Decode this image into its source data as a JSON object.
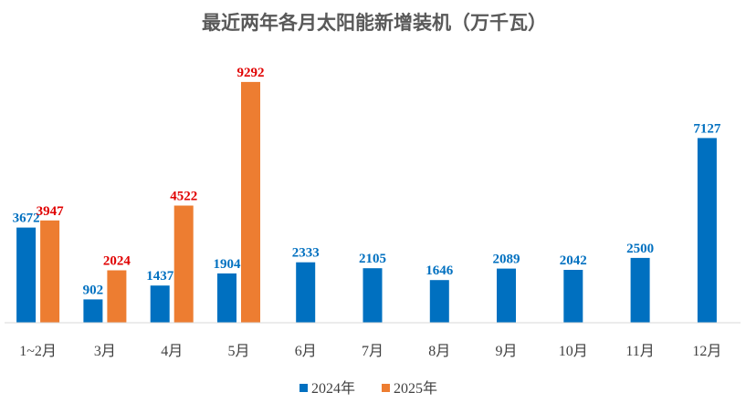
{
  "chart_data": {
    "type": "bar",
    "title": "最近两年各月太阳能新增装机（万千瓦）",
    "xlabel": "",
    "ylabel": "",
    "ylim": [
      0,
      9500
    ],
    "grid": false,
    "legend_position": "bottom",
    "categories": [
      "1~2月",
      "3月",
      "4月",
      "5月",
      "6月",
      "7月",
      "8月",
      "9月",
      "10月",
      "11月",
      "12月"
    ],
    "series": [
      {
        "name": "2024年",
        "color": "#0070C0",
        "label_color": "#0070C0",
        "values": [
          3672,
          902,
          1437,
          1904,
          2333,
          2105,
          1646,
          2089,
          2042,
          2500,
          7127
        ]
      },
      {
        "name": "2025年",
        "color": "#ED7D31",
        "label_color": "#E00000",
        "values": [
          3947,
          2024,
          4522,
          9292,
          null,
          null,
          null,
          null,
          null,
          null,
          null
        ]
      }
    ]
  }
}
